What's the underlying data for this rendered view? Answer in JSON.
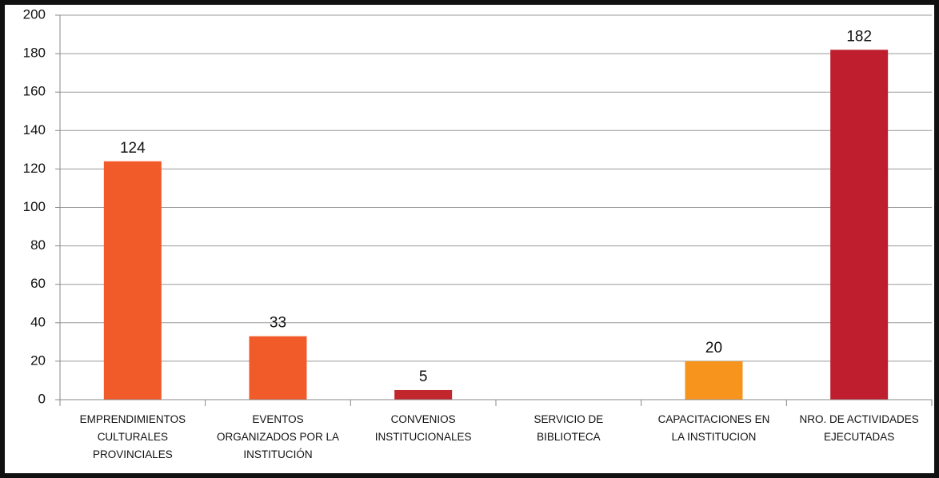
{
  "chart_data": {
    "type": "bar",
    "categories": [
      "EMPRENDIMIENTOS CULTURALES PROVINCIALES",
      "EVENTOS ORGANIZADOS POR LA INSTITUCIÓN",
      "CONVENIOS INSTITUCIONALES",
      "SERVICIO DE BIBLIOTECA",
      "CAPACITACIONES EN LA INSTITUCION",
      "NRO. DE ACTIVIDADES EJECUTADAS"
    ],
    "values": [
      124,
      33,
      5,
      null,
      20,
      182
    ],
    "colors": [
      "#f15a29",
      "#f15a29",
      "#c1272d",
      "#f15a29",
      "#f7941d",
      "#be1e2d"
    ],
    "ylim": [
      0,
      200
    ],
    "yticks": [
      0,
      20,
      40,
      60,
      80,
      100,
      120,
      140,
      160,
      180,
      200
    ],
    "grid": true
  }
}
